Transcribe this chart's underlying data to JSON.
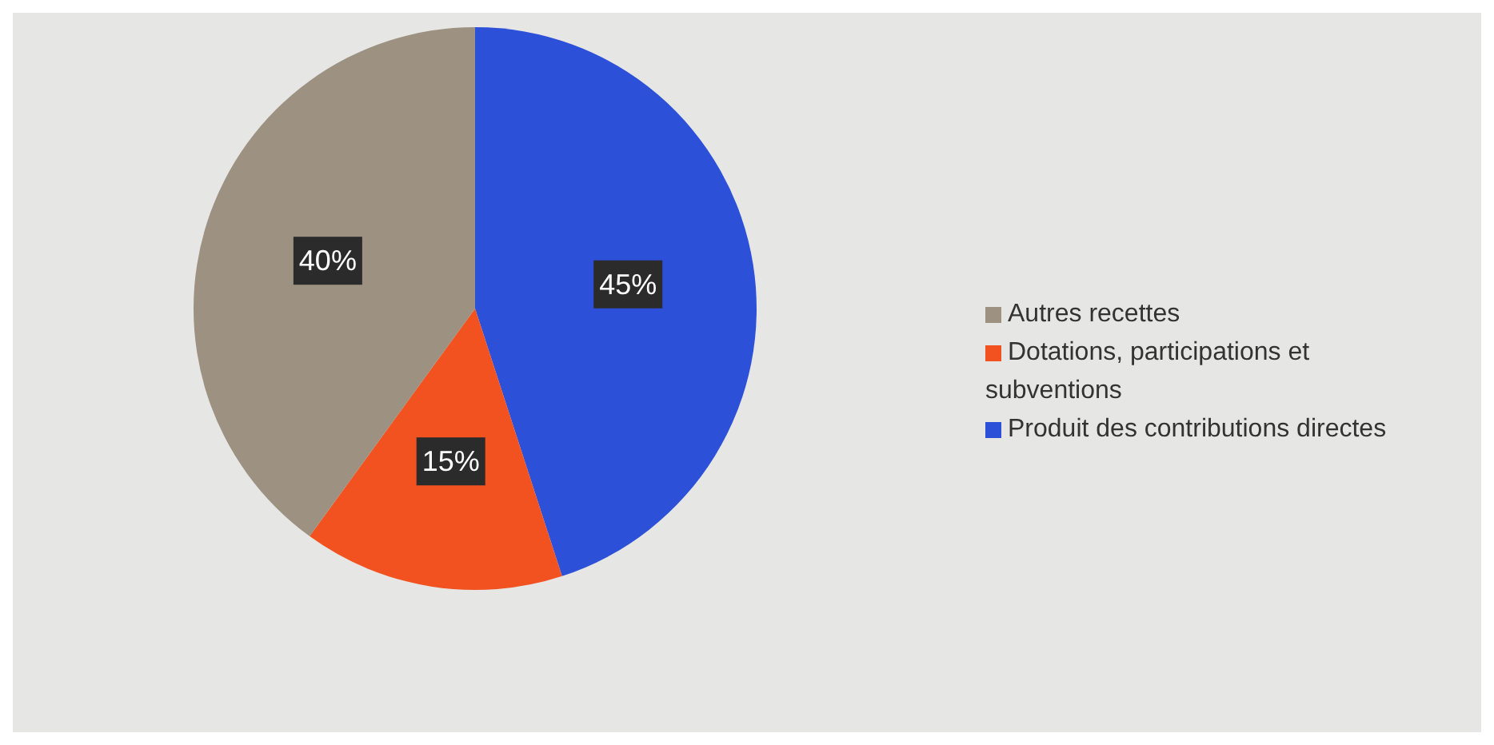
{
  "chart_data": {
    "type": "pie",
    "categories": [
      "Produit des contributions directes",
      "Dotations, participations et subventions",
      "Autres recettes"
    ],
    "values": [
      45,
      15,
      40
    ],
    "colors": [
      "#2d50d8",
      "#f2521f",
      "#9d9282"
    ],
    "value_labels": [
      "45%",
      "15%",
      "40%"
    ],
    "legend": "right"
  }
}
